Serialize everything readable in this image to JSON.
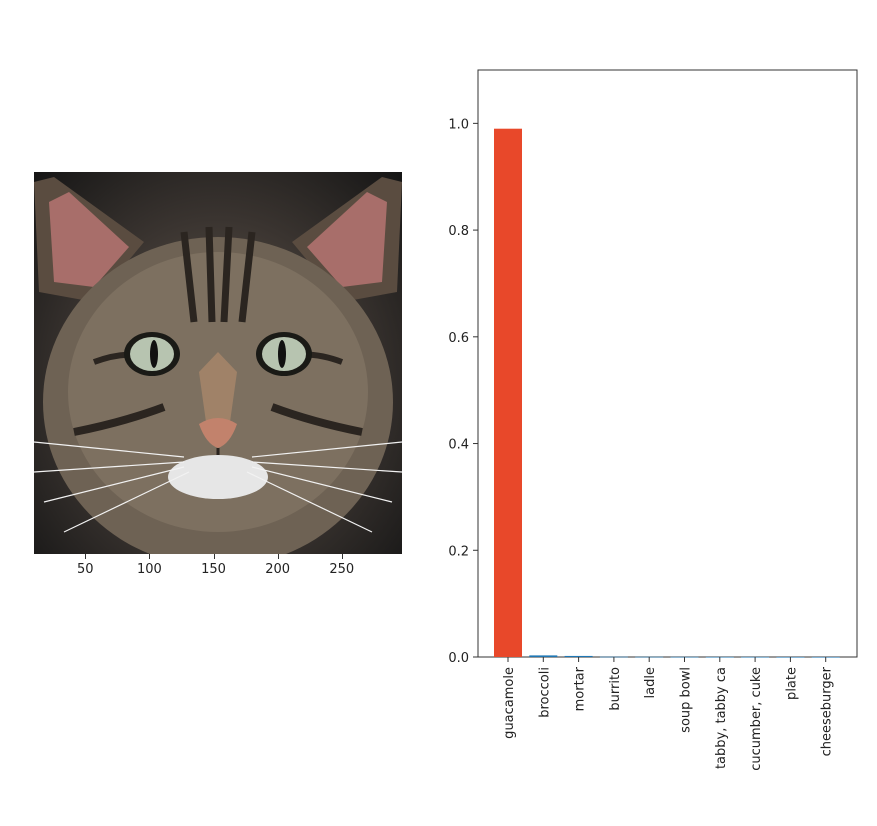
{
  "image_panel": {
    "x_ticks": [
      "50",
      "100",
      "150",
      "200",
      "250"
    ],
    "image_subject": "tabby-cat-face"
  },
  "chart_data": {
    "type": "bar",
    "categories": [
      "guacamole",
      "broccoli",
      "mortar",
      "burrito",
      "ladle",
      "soup bowl",
      "tabby, tabby ca",
      "cucumber, cuke",
      "plate",
      "cheeseburger"
    ],
    "values": [
      0.99,
      0.003,
      0.002,
      0.0005,
      0.0004,
      0.0003,
      0.0002,
      0.0002,
      0.0001,
      0.0001
    ],
    "bar_colors": [
      "#e8482a",
      "#1f77b4",
      "#1f77b4",
      "#1f77b4",
      "#1f77b4",
      "#1f77b4",
      "#1f77b4",
      "#1f77b4",
      "#1f77b4",
      "#1f77b4"
    ],
    "ylim": [
      0,
      1.1
    ],
    "yticks": [
      "0.0",
      "0.2",
      "0.4",
      "0.6",
      "0.8",
      "1.0"
    ],
    "title": "",
    "xlabel": "",
    "ylabel": "",
    "grid": false
  }
}
